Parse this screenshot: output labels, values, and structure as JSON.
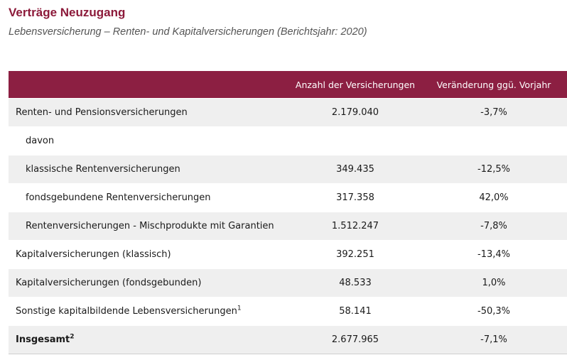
{
  "title": "Verträge Neuzugang",
  "subtitle": "Lebensversicherung – Renten- und Kapitalversicherungen (Berichtsjahr: 2020)",
  "table": {
    "headers": {
      "label": "",
      "count": "Anzahl der Versicherungen",
      "change": "Veränderung ggü. Vorjahr"
    },
    "rows": [
      {
        "label": "Renten- und Pensionsversicherungen",
        "sup": "",
        "count": "2.179.040",
        "change": "-3,7%"
      },
      {
        "label": "davon",
        "sup": "",
        "count": "",
        "change": ""
      },
      {
        "label": "klassische Rentenversicherungen",
        "sup": "",
        "count": "349.435",
        "change": "-12,5%"
      },
      {
        "label": "fondsgebundene Rentenversicherungen",
        "sup": "",
        "count": "317.358",
        "change": "42,0%"
      },
      {
        "label": "Rentenversicherungen - Mischprodukte mit Garantien",
        "sup": "",
        "count": "1.512.247",
        "change": "-7,8%"
      },
      {
        "label": "Kapitalversicherungen (klassisch)",
        "sup": "",
        "count": "392.251",
        "change": "-13,4%"
      },
      {
        "label": "Kapitalversicherungen (fondsgebunden)",
        "sup": "",
        "count": "48.533",
        "change": "1,0%"
      },
      {
        "label": "Sonstige kapitalbildende Lebensversicherungen",
        "sup": "1",
        "count": "58.141",
        "change": "-50,3%"
      },
      {
        "label": "Insgesamt",
        "sup": "2",
        "count": "2.677.965",
        "change": "-7,1%"
      }
    ]
  }
}
